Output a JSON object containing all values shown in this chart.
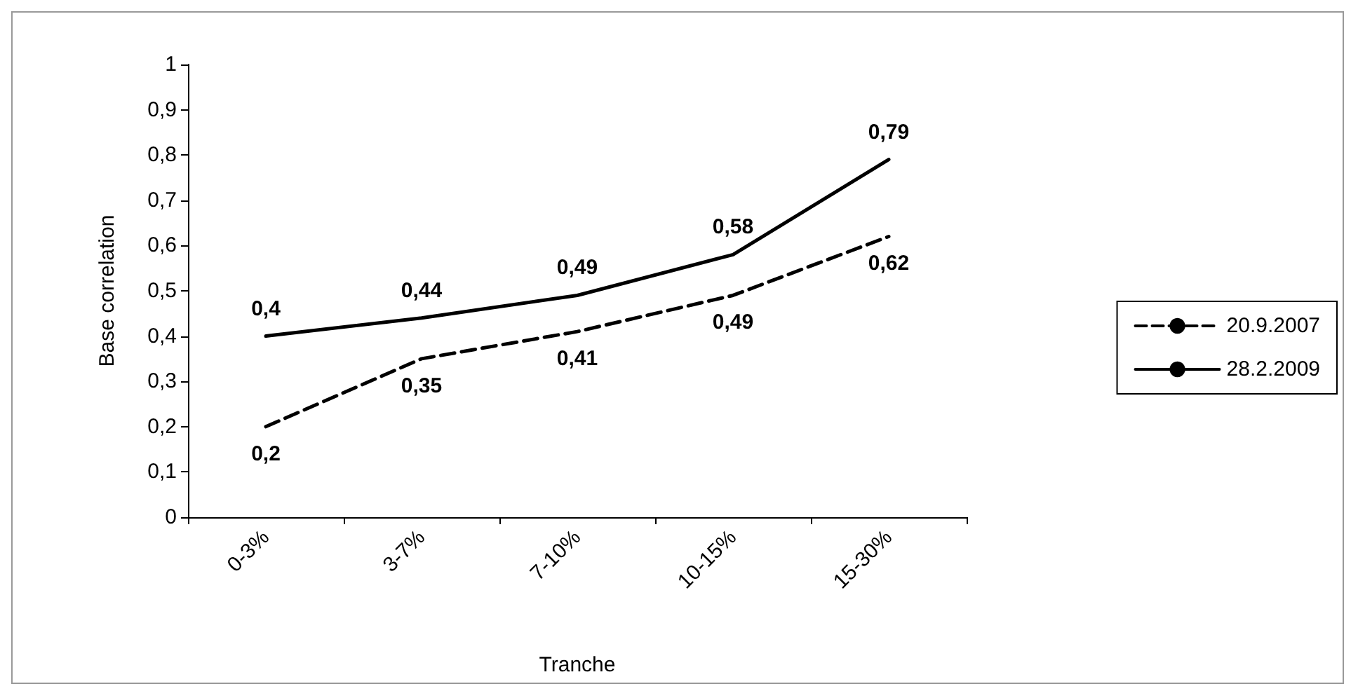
{
  "chart_data": {
    "type": "line",
    "xlabel": "Tranche",
    "ylabel": "Base correlation",
    "categories": [
      "0-3%",
      "3-7%",
      "7-10%",
      "10-15%",
      "15-30%"
    ],
    "series": [
      {
        "name": "20.9.2007",
        "color": "#000000",
        "line_style": "dashed",
        "values": [
          0.2,
          0.35,
          0.41,
          0.49,
          0.62
        ],
        "value_labels": [
          "0,2",
          "0,35",
          "0,41",
          "0,49",
          "0,62"
        ]
      },
      {
        "name": "28.2.2009",
        "color": "#000000",
        "line_style": "solid",
        "values": [
          0.4,
          0.44,
          0.49,
          0.58,
          0.79
        ],
        "value_labels": [
          "0,4",
          "0,44",
          "0,49",
          "0,58",
          "0,79"
        ]
      }
    ],
    "ylim": [
      0,
      1
    ],
    "yticks": [
      0,
      {
        "value": 0.1,
        "label": "0,1"
      },
      {
        "value": 0.2,
        "label": "0,2"
      },
      {
        "value": 0.3,
        "label": "0,3"
      },
      {
        "value": 0.4,
        "label": "0,4"
      },
      {
        "value": 0.5,
        "label": "0,5"
      },
      {
        "value": 0.6,
        "label": "0,6"
      },
      {
        "value": 0.7,
        "label": "0,7"
      },
      {
        "value": 0.8,
        "label": "0,8"
      },
      {
        "value": 0.9,
        "label": "0,9"
      },
      1
    ],
    "grid": false,
    "legend": "right",
    "marker": "none"
  }
}
